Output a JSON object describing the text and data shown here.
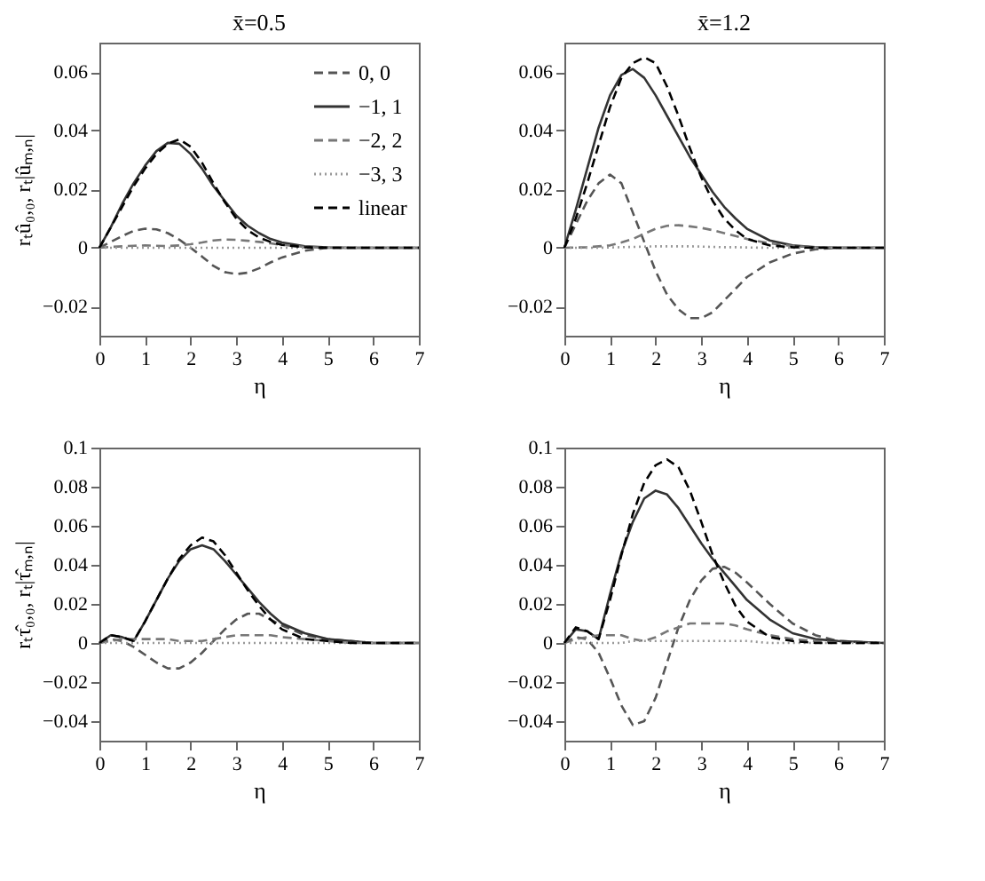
{
  "chart_data": [
    {
      "type": "line",
      "title": "x̄=0.5",
      "xlabel": "η",
      "ylabel": "rₜû₀,₀, rₜ|ûₘ,ₙ|",
      "xlim": [
        0,
        7
      ],
      "xticks": [
        0,
        1,
        2,
        3,
        4,
        5,
        6,
        7
      ],
      "ylim": [
        -0.03,
        0.07
      ],
      "yticks": [
        -0.02,
        0,
        0.02,
        0.04,
        0.06
      ],
      "grid": false,
      "legend": "top right",
      "x": [
        0,
        0.25,
        0.5,
        0.75,
        1,
        1.25,
        1.5,
        1.75,
        2,
        2.25,
        2.5,
        2.75,
        3,
        3.25,
        3.5,
        3.75,
        4,
        4.5,
        5,
        5.5,
        6,
        7
      ],
      "series": [
        {
          "name": "0, 0",
          "color": "#555555",
          "line_style": "dashed",
          "values": [
            0,
            0.002,
            0.004,
            0.0058,
            0.0065,
            0.0063,
            0.005,
            0.0028,
            0,
            -0.003,
            -0.0062,
            -0.0083,
            -0.009,
            -0.0085,
            -0.007,
            -0.005,
            -0.0033,
            -0.001,
            0,
            0,
            0,
            0
          ]
        },
        {
          "name": "−1, 1",
          "color": "#333333",
          "line_style": "solid",
          "values": [
            0,
            0.007,
            0.015,
            0.022,
            0.028,
            0.033,
            0.0358,
            0.0355,
            0.032,
            0.027,
            0.021,
            0.016,
            0.011,
            0.0075,
            0.005,
            0.003,
            0.0018,
            0.0005,
            0.0001,
            0,
            0,
            0
          ]
        },
        {
          "name": "−2, 2",
          "color": "#777777",
          "line_style": "dashed",
          "values": [
            0,
            0.0003,
            0.0005,
            0.0007,
            0.0008,
            0.0007,
            0.0006,
            0.0008,
            0.0012,
            0.0018,
            0.0025,
            0.0028,
            0.0027,
            0.0024,
            0.002,
            0.0015,
            0.001,
            0.0003,
            0,
            0,
            0,
            0
          ]
        },
        {
          "name": "−3, 3",
          "color": "#999999",
          "line_style": "dotted",
          "values": [
            0,
            0,
            0,
            0,
            0,
            0,
            0,
            0,
            0,
            0,
            0,
            0,
            0,
            0,
            0,
            0,
            0,
            0,
            0,
            0,
            0,
            0
          ]
        },
        {
          "name": "linear",
          "color": "#000000",
          "line_style": "dashed",
          "values": [
            0,
            0.007,
            0.014,
            0.021,
            0.027,
            0.032,
            0.0355,
            0.037,
            0.0345,
            0.029,
            0.022,
            0.0155,
            0.01,
            0.006,
            0.0035,
            0.002,
            0.001,
            0.0002,
            0,
            0,
            0,
            0
          ]
        }
      ]
    },
    {
      "type": "line",
      "title": "x̄=1.2",
      "xlabel": "η",
      "xlim": [
        0,
        7
      ],
      "xticks": [
        0,
        1,
        2,
        3,
        4,
        5,
        6,
        7
      ],
      "ylim": [
        -0.03,
        0.07
      ],
      "yticks": [
        -0.02,
        0,
        0.02,
        0.04,
        0.06
      ],
      "grid": false,
      "x": [
        0,
        0.25,
        0.5,
        0.75,
        1,
        1.25,
        1.5,
        1.75,
        2,
        2.25,
        2.5,
        2.75,
        3,
        3.25,
        3.5,
        3.75,
        4,
        4.5,
        5,
        5.5,
        6,
        7
      ],
      "series": [
        {
          "color": "#555555",
          "line_style": "dashed",
          "values": [
            0,
            0.008,
            0.016,
            0.022,
            0.025,
            0.022,
            0.012,
            0.002,
            -0.008,
            -0.016,
            -0.021,
            -0.024,
            -0.024,
            -0.022,
            -0.018,
            -0.014,
            -0.01,
            -0.005,
            -0.002,
            -0.0005,
            0,
            0
          ]
        },
        {
          "color": "#333333",
          "line_style": "solid",
          "values": [
            0,
            0.013,
            0.027,
            0.041,
            0.052,
            0.059,
            0.061,
            0.058,
            0.052,
            0.045,
            0.038,
            0.031,
            0.025,
            0.019,
            0.014,
            0.01,
            0.0065,
            0.0025,
            0.0008,
            0.0002,
            0,
            0
          ]
        },
        {
          "color": "#777777",
          "line_style": "dashed",
          "values": [
            0,
            0.0001,
            0.0002,
            0.0005,
            0.0008,
            0.0018,
            0.003,
            0.0048,
            0.0065,
            0.0075,
            0.0077,
            0.0073,
            0.0068,
            0.006,
            0.005,
            0.004,
            0.003,
            0.0015,
            0.0006,
            0.0002,
            0,
            0
          ]
        },
        {
          "color": "#999999",
          "line_style": "dotted",
          "values": [
            0,
            0,
            0,
            0,
            0.0001,
            0.0002,
            0.0003,
            0.0004,
            0.0005,
            0.0005,
            0.0005,
            0.0005,
            0.0004,
            0.0003,
            0.0002,
            0.0002,
            0.0001,
            0,
            0,
            0,
            0,
            0
          ]
        },
        {
          "color": "#000000",
          "line_style": "dashed",
          "values": [
            0,
            0.01,
            0.022,
            0.035,
            0.048,
            0.058,
            0.063,
            0.065,
            0.063,
            0.055,
            0.045,
            0.034,
            0.024,
            0.016,
            0.01,
            0.006,
            0.003,
            0.0008,
            0.0002,
            0,
            0,
            0
          ]
        }
      ]
    },
    {
      "type": "line",
      "xlabel": "η",
      "ylabel": "rₜτ̂₀,₀, rₜ|τ̂ₘ,ₙ|",
      "xlim": [
        0,
        7
      ],
      "xticks": [
        0,
        1,
        2,
        3,
        4,
        5,
        6,
        7
      ],
      "ylim": [
        -0.05,
        0.1
      ],
      "yticks": [
        -0.04,
        -0.02,
        0,
        0.02,
        0.04,
        0.06,
        0.08,
        0.1
      ],
      "grid": false,
      "x": [
        0,
        0.25,
        0.5,
        0.75,
        1,
        1.25,
        1.5,
        1.75,
        2,
        2.25,
        2.5,
        2.75,
        3,
        3.25,
        3.5,
        3.75,
        4,
        4.5,
        5,
        5.5,
        6,
        7
      ],
      "series": [
        {
          "color": "#555555",
          "line_style": "dashed",
          "values": [
            0,
            0.002,
            0.001,
            -0.002,
            -0.006,
            -0.01,
            -0.013,
            -0.013,
            -0.01,
            -0.005,
            0.001,
            0.007,
            0.012,
            0.015,
            0.015,
            0.012,
            0.009,
            0.004,
            0.002,
            0.001,
            0,
            0
          ]
        },
        {
          "color": "#333333",
          "line_style": "solid",
          "values": [
            0,
            0.004,
            0.003,
            0.001,
            0.011,
            0.022,
            0.033,
            0.042,
            0.048,
            0.05,
            0.048,
            0.042,
            0.035,
            0.028,
            0.021,
            0.015,
            0.01,
            0.005,
            0.002,
            0.001,
            0,
            0
          ]
        },
        {
          "color": "#777777",
          "line_style": "dashed",
          "values": [
            0,
            0.001,
            0.002,
            0.002,
            0.002,
            0.002,
            0.002,
            0.001,
            0.001,
            0.001,
            0.002,
            0.003,
            0.004,
            0.004,
            0.004,
            0.004,
            0.003,
            0.002,
            0.001,
            0,
            0,
            0
          ]
        },
        {
          "color": "#999999",
          "line_style": "dotted",
          "values": [
            0,
            0,
            0,
            0,
            0,
            0,
            0,
            0,
            0,
            0,
            0,
            0,
            0,
            0,
            0,
            0,
            0,
            0,
            0,
            0,
            0,
            0
          ]
        },
        {
          "color": "#000000",
          "line_style": "dashed",
          "values": [
            0,
            0.004,
            0.003,
            0.001,
            0.011,
            0.022,
            0.033,
            0.043,
            0.05,
            0.054,
            0.052,
            0.045,
            0.036,
            0.027,
            0.019,
            0.012,
            0.007,
            0.002,
            0.001,
            0,
            0,
            0
          ]
        }
      ]
    },
    {
      "type": "line",
      "xlabel": "η",
      "xlim": [
        0,
        7
      ],
      "xticks": [
        0,
        1,
        2,
        3,
        4,
        5,
        6,
        7
      ],
      "ylim": [
        -0.05,
        0.1
      ],
      "yticks": [
        -0.04,
        -0.02,
        0,
        0.02,
        0.04,
        0.06,
        0.08,
        0.1
      ],
      "grid": false,
      "x": [
        0,
        0.25,
        0.5,
        0.75,
        1,
        1.25,
        1.5,
        1.75,
        2,
        2.25,
        2.5,
        2.75,
        3,
        3.25,
        3.5,
        3.75,
        4,
        4.5,
        5,
        5.5,
        6,
        7
      ],
      "series": [
        {
          "color": "#555555",
          "line_style": "dashed",
          "values": [
            0,
            0.003,
            0.002,
            -0.005,
            -0.018,
            -0.032,
            -0.042,
            -0.04,
            -0.028,
            -0.01,
            0.008,
            0.022,
            0.032,
            0.038,
            0.039,
            0.036,
            0.031,
            0.02,
            0.01,
            0.004,
            0.001,
            0
          ]
        },
        {
          "color": "#333333",
          "line_style": "solid",
          "values": [
            0,
            0.007,
            0.006,
            0.002,
            0.025,
            0.046,
            0.062,
            0.074,
            0.078,
            0.076,
            0.069,
            0.06,
            0.051,
            0.043,
            0.036,
            0.029,
            0.022,
            0.012,
            0.005,
            0.002,
            0.001,
            0
          ]
        },
        {
          "color": "#777777",
          "line_style": "dashed",
          "values": [
            0,
            0.002,
            0.003,
            0.004,
            0.004,
            0.004,
            0.002,
            0.001,
            0.003,
            0.006,
            0.008,
            0.01,
            0.01,
            0.01,
            0.01,
            0.009,
            0.007,
            0.004,
            0.002,
            0.001,
            0,
            0
          ]
        },
        {
          "color": "#999999",
          "line_style": "dotted",
          "values": [
            0,
            0,
            0,
            0,
            0,
            0,
            0.001,
            0.001,
            0.001,
            0.001,
            0.001,
            0.001,
            0.001,
            0.001,
            0.001,
            0.001,
            0.001,
            0,
            0,
            0,
            0,
            0
          ]
        },
        {
          "color": "#000000",
          "line_style": "dashed",
          "values": [
            0,
            0.008,
            0.006,
            0.002,
            0.022,
            0.045,
            0.066,
            0.082,
            0.091,
            0.094,
            0.09,
            0.078,
            0.062,
            0.045,
            0.031,
            0.019,
            0.011,
            0.003,
            0.001,
            0,
            0,
            0
          ]
        }
      ]
    }
  ]
}
